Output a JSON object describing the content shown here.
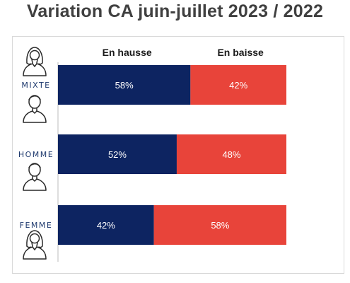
{
  "title": "Variation CA juin-juillet 2023 / 2022",
  "colors": {
    "hausse": "#0d2461",
    "baisse": "#e8443a",
    "axis": "#bdbdbd"
  },
  "chart_data": {
    "type": "bar",
    "orientation": "horizontal",
    "stacked": true,
    "percent": true,
    "categories": [
      "MIXTE",
      "HOMME",
      "FEMME"
    ],
    "series": [
      {
        "name": "En hausse",
        "values": [
          58,
          52,
          42
        ]
      },
      {
        "name": "En baisse",
        "values": [
          42,
          48,
          58
        ]
      }
    ],
    "value_labels": [
      [
        "58%",
        "52%",
        "42%"
      ],
      [
        "42%",
        "48%",
        "58%"
      ]
    ],
    "xlim": [
      0,
      100
    ],
    "legend": "top",
    "grid": false
  },
  "icons": {
    "MIXTE": [
      "female-person-icon",
      "male-person-icon"
    ],
    "HOMME": [
      "male-person-icon"
    ],
    "FEMME": [
      "female-person-icon"
    ]
  }
}
